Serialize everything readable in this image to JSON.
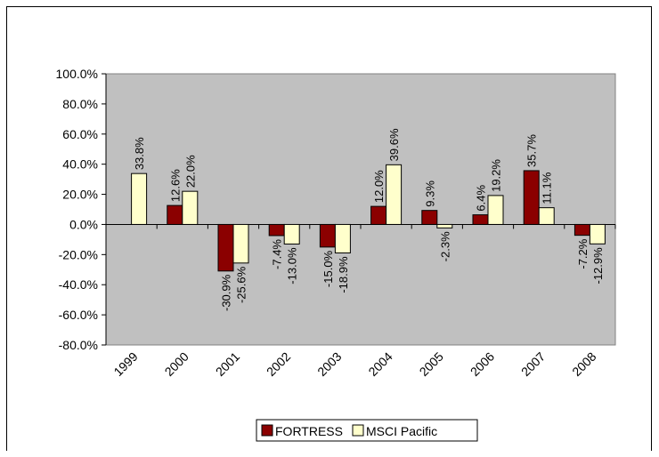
{
  "chart_data": {
    "type": "bar",
    "categories": [
      "1999",
      "2000",
      "2001",
      "2002",
      "2003",
      "2004",
      "2005",
      "2006",
      "2007",
      "2008"
    ],
    "series": [
      {
        "name": "FORTRESS",
        "color": "#8B0000",
        "values": [
          null,
          12.6,
          -30.9,
          -7.4,
          -15.0,
          12.0,
          9.3,
          6.4,
          35.7,
          -7.2
        ],
        "labels": [
          "",
          "12.6%",
          "-30.9%",
          "-7.4%",
          "-15.0%",
          "12.0%",
          "9.3%",
          "6.4%",
          "35.7%",
          "-7.2%"
        ]
      },
      {
        "name": "MSCI Pacific",
        "color": "#FFFFCC",
        "values": [
          33.8,
          22.0,
          -25.6,
          -13.0,
          -18.9,
          39.6,
          -2.3,
          19.2,
          11.1,
          -12.9
        ],
        "labels": [
          "33.8%",
          "22.0%",
          "-25.6%",
          "-13.0%",
          "-18.9%",
          "39.6%",
          "-2.3%",
          "19.2%",
          "11.1%",
          "-12.9%"
        ]
      }
    ],
    "y_ticks": [
      100,
      80,
      60,
      40,
      20,
      0,
      -20,
      -40,
      -60,
      -80
    ],
    "y_tick_labels": [
      "100.0%",
      "80.0%",
      "60.0%",
      "40.0%",
      "20.0%",
      "0.0%",
      "-20.0%",
      "-40.0%",
      "-60.0%",
      "-80.0%"
    ],
    "ylim": [
      -80,
      100
    ],
    "title": "",
    "xlabel": "",
    "ylabel": "",
    "plot_background": "#C0C0C0",
    "grid": false,
    "legend_position": "bottom"
  }
}
